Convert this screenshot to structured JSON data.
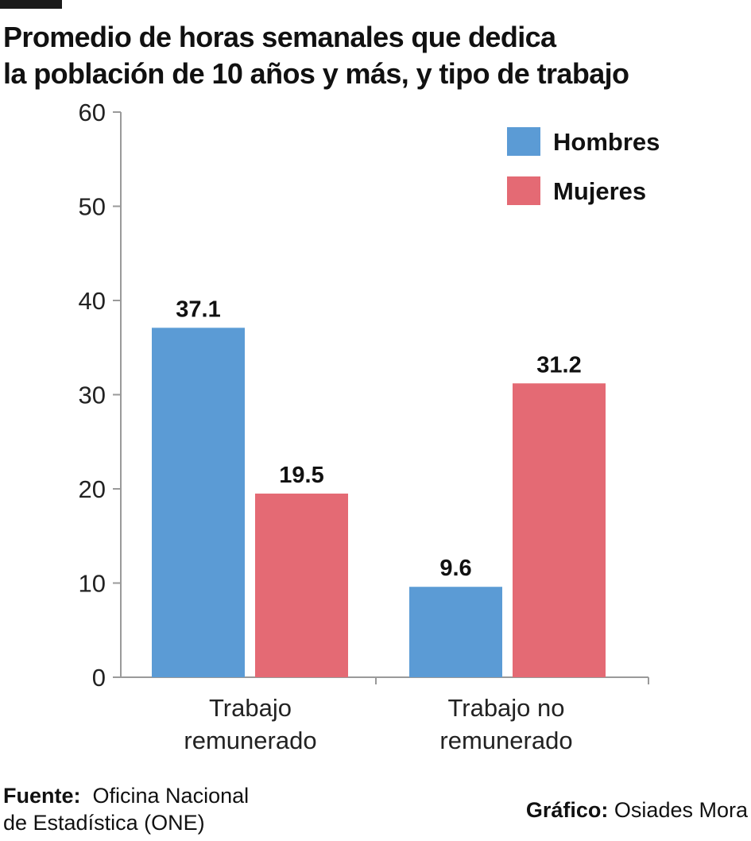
{
  "title": {
    "line1": "Promedio de horas semanales que dedica",
    "line2": "la población de 10 años y más, y tipo de trabajo"
  },
  "footer": {
    "source_label": "Fuente:",
    "source_line1": "Oficina Nacional",
    "source_line2": "de Estadística (ONE)",
    "credit_label": "Gráfico:",
    "credit_name": "Osiades Mora"
  },
  "chart_data": {
    "type": "bar",
    "title": "Promedio de horas semanales que dedica la población de 10 años y más, y tipo de trabajo",
    "xlabel": "",
    "ylabel": "",
    "ylim": [
      0,
      60
    ],
    "yticks": [
      0,
      10,
      20,
      30,
      40,
      50,
      60
    ],
    "categories": [
      [
        "Trabajo",
        "remunerado"
      ],
      [
        "Trabajo no",
        "remunerado"
      ]
    ],
    "series": [
      {
        "name": "Hombres",
        "color": "#5b9bd5",
        "values": [
          37.1,
          9.6
        ],
        "labels": [
          "37.1",
          "9.6"
        ]
      },
      {
        "name": "Mujeres",
        "color": "#e46a74",
        "values": [
          19.5,
          31.2
        ],
        "labels": [
          "19.5",
          "31.2"
        ]
      }
    ],
    "grid": false,
    "legend": "top-right"
  }
}
